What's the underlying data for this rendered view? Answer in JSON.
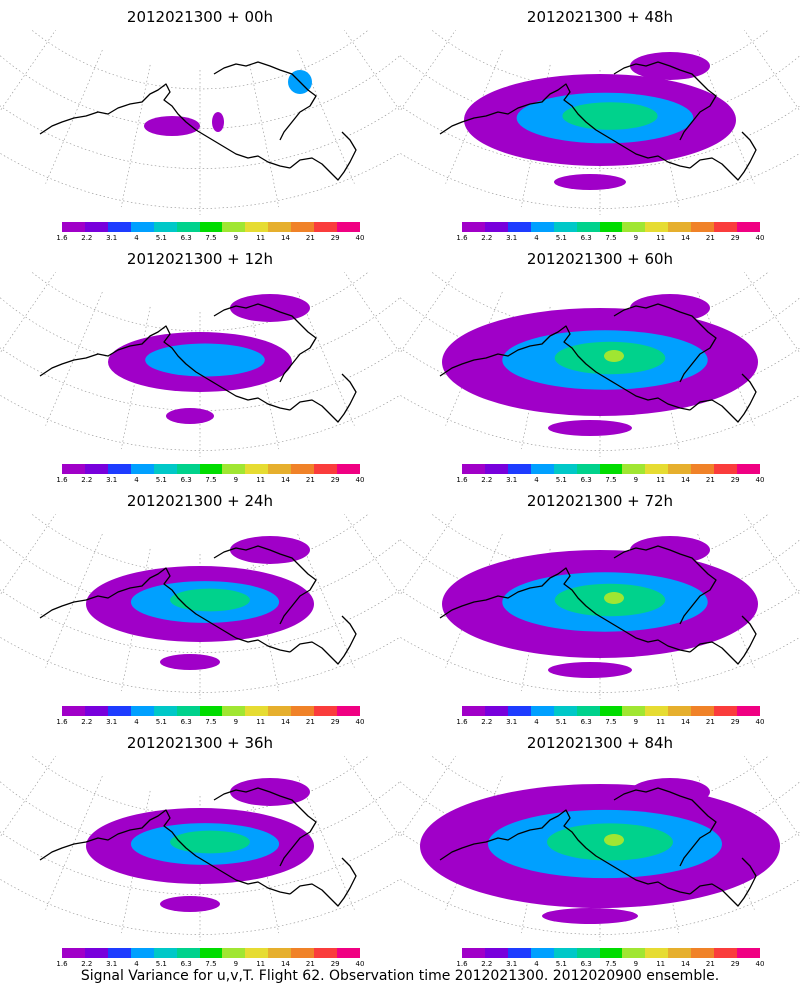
{
  "panels": [
    {
      "title": "2012021300 + 00h",
      "level": 0
    },
    {
      "title": "2012021300 + 48h",
      "level": 3
    },
    {
      "title": "2012021300 + 12h",
      "level": 1
    },
    {
      "title": "2012021300 + 60h",
      "level": 4
    },
    {
      "title": "2012021300 + 24h",
      "level": 2
    },
    {
      "title": "2012021300 + 72h",
      "level": 4
    },
    {
      "title": "2012021300 + 36h",
      "level": 2
    },
    {
      "title": "2012021300 + 84h",
      "level": 5
    }
  ],
  "colorbar": {
    "labels": [
      "1.6",
      "2.2",
      "3.1",
      "4",
      "5.1",
      "6.3",
      "7.5",
      "9",
      "11",
      "14",
      "21",
      "29",
      "40"
    ],
    "colors": [
      "#a000c8",
      "#7800dc",
      "#1e3cff",
      "#00a0ff",
      "#00c8c8",
      "#00d28c",
      "#00dc00",
      "#a0e632",
      "#e6dc32",
      "#e6af2d",
      "#f08228",
      "#fa3c3c",
      "#f00082"
    ]
  },
  "caption": "Signal Variance for u,v,T. Flight 62. Observation time 2012021300. 2012020900 ensemble.",
  "map_colors": {
    "coast": "#000000",
    "grid": "#909090",
    "low": "#a000c8",
    "mid": "#00a0ff",
    "high": "#00d28c",
    "peak": "#a0e632"
  }
}
